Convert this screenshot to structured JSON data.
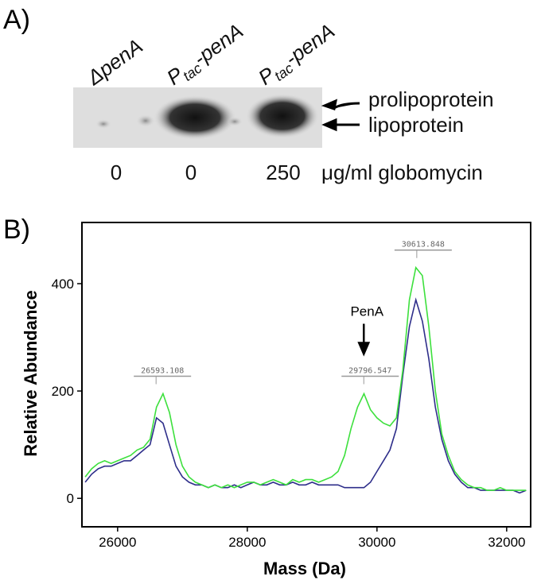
{
  "panel_a": {
    "label": "A)",
    "lanes": [
      {
        "name": "ΔpenA"
      },
      {
        "main": "P",
        "sub": "tac",
        "tail": "-penA"
      },
      {
        "main": "P",
        "sub": "tac",
        "tail": "-penA"
      }
    ],
    "bands": [
      "prolipoprotein",
      "lipoprotein"
    ],
    "concentrations": [
      "0",
      "0",
      "250"
    ],
    "concentration_unit": "μg/ml globomycin"
  },
  "chart_data": {
    "type": "line",
    "panel_label": "B)",
    "x_label": "Mass (Da)",
    "y_label": "Relative Abundance",
    "x": [
      25500,
      25600,
      25700,
      25800,
      25900,
      26000,
      26100,
      26200,
      26300,
      26400,
      26500,
      26600,
      26700,
      26800,
      26900,
      27000,
      27100,
      27200,
      27300,
      27400,
      27500,
      27600,
      27700,
      27800,
      27900,
      28000,
      28100,
      28200,
      28300,
      28400,
      28500,
      28600,
      28700,
      28800,
      28900,
      29000,
      29100,
      29200,
      29300,
      29400,
      29500,
      29600,
      29700,
      29800,
      29900,
      30000,
      30100,
      30200,
      30300,
      30400,
      30500,
      30600,
      30700,
      30800,
      30900,
      31000,
      31100,
      31200,
      31300,
      31400,
      31500,
      31600,
      31700,
      31800,
      31900,
      32000,
      32100,
      32200,
      32300
    ],
    "series": [
      {
        "color": "#2e2e8a",
        "values": [
          30,
          45,
          55,
          60,
          60,
          65,
          70,
          70,
          80,
          90,
          100,
          150,
          140,
          100,
          60,
          40,
          30,
          25,
          25,
          20,
          25,
          20,
          20,
          25,
          20,
          25,
          30,
          25,
          25,
          30,
          25,
          25,
          30,
          25,
          25,
          30,
          25,
          25,
          25,
          25,
          20,
          20,
          20,
          20,
          30,
          50,
          70,
          90,
          130,
          230,
          320,
          370,
          330,
          260,
          170,
          110,
          70,
          45,
          30,
          20,
          20,
          15,
          15,
          15,
          15,
          15,
          15,
          10,
          15
        ]
      },
      {
        "color": "#3de03d",
        "values": [
          40,
          55,
          65,
          70,
          65,
          70,
          75,
          80,
          90,
          95,
          110,
          170,
          195,
          160,
          100,
          60,
          40,
          30,
          25,
          20,
          25,
          20,
          25,
          20,
          25,
          30,
          30,
          25,
          30,
          35,
          30,
          25,
          35,
          30,
          35,
          35,
          30,
          35,
          40,
          50,
          80,
          130,
          170,
          195,
          165,
          150,
          140,
          135,
          150,
          240,
          370,
          430,
          415,
          320,
          200,
          120,
          80,
          50,
          35,
          25,
          20,
          20,
          15,
          15,
          20,
          15,
          15,
          15,
          15
        ]
      }
    ],
    "annotations": [
      {
        "label": "26593.108",
        "x": 26593.108
      },
      {
        "label": "29796.547",
        "x": 29796.547
      },
      {
        "label": "30613.848",
        "x": 30613.848
      }
    ],
    "arrow_label": "PenA",
    "xlim": [
      25450,
      32370
    ],
    "ylim": [
      -53,
      514
    ],
    "xticks": [
      26000,
      28000,
      30000,
      32000
    ],
    "yticks": [
      0,
      200,
      400
    ]
  }
}
